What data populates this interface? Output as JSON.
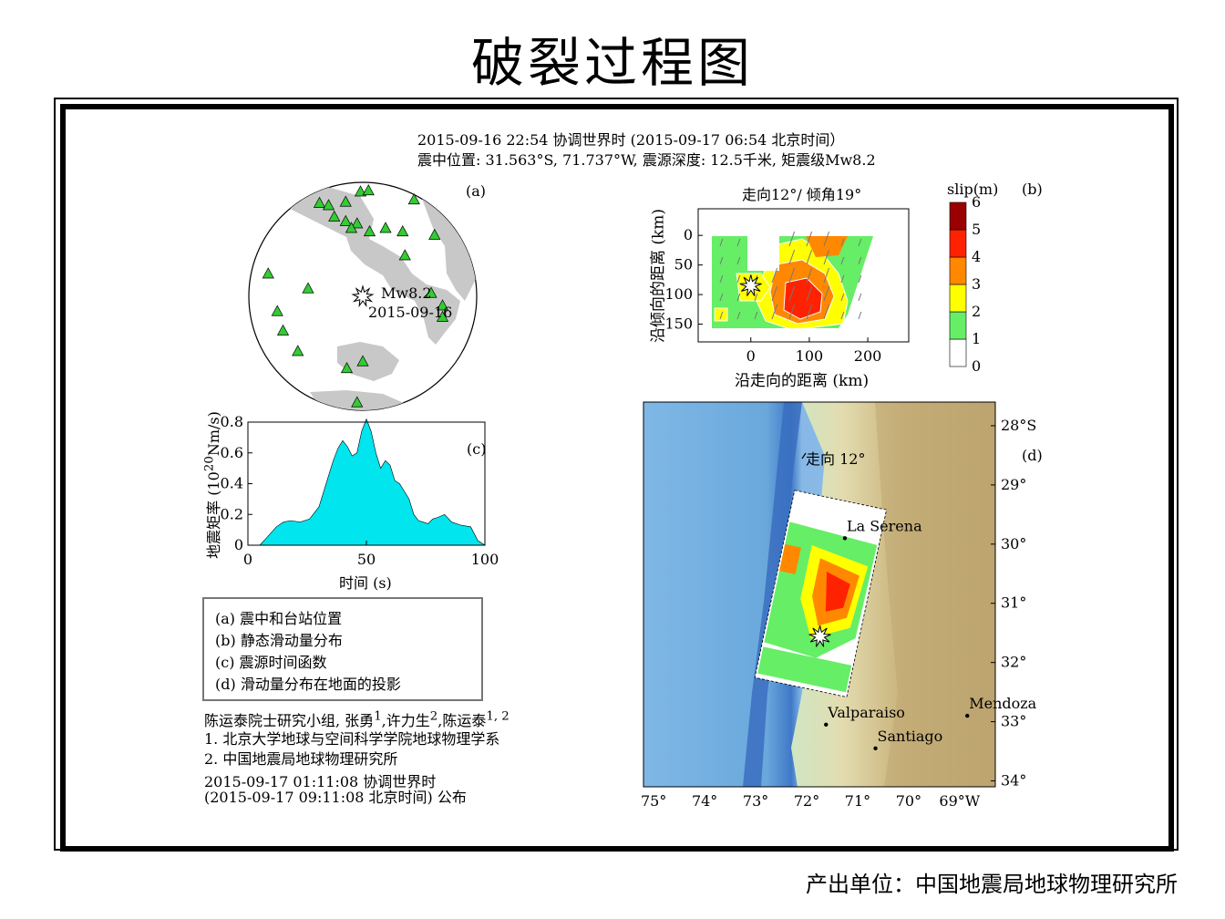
{
  "page": {
    "title": "破裂过程图",
    "producer": "产出单位：中国地震局地球物理研究所"
  },
  "header": {
    "line1": "2015-09-16 22:54 协调世界时  (2015-09-17 06:54 北京时间）",
    "line2": "震中位置: 31.563°S, 71.737°W,  震源深度: 12.5千米,  矩震级Mw8.2"
  },
  "panel_a": {
    "label": "(a)",
    "event_name": "Mw8.2",
    "event_date": "2015-09-16",
    "colors": {
      "station": "#33cc33",
      "land": "#c8c8c8"
    }
  },
  "panel_b": {
    "label": "(b)",
    "title": "走向12°/ 倾角19°",
    "colorbar_title": "slip(m)",
    "colorbar_ticks": [
      "0",
      "1",
      "2",
      "3",
      "4",
      "5",
      "6"
    ],
    "colorbar_colors": [
      "#ffffff",
      "#66ee66",
      "#ffff00",
      "#ff8800",
      "#ff2200",
      "#990000"
    ]
  },
  "panel_d": {
    "label": "(d)",
    "strike_label": "走向 12°",
    "cities": [
      {
        "name": "La Serena",
        "lon": -71.25,
        "lat": -29.9
      },
      {
        "name": "Valparaiso",
        "lon": -71.62,
        "lat": -33.05
      },
      {
        "name": "Santiago",
        "lon": -70.65,
        "lat": -33.45
      },
      {
        "name": "Mendoza",
        "lon": -68.85,
        "lat": -32.9
      }
    ],
    "lat_ticks": [
      "28°S",
      "29°",
      "30°",
      "31°",
      "32°",
      "33°",
      "34°"
    ],
    "lon_ticks": [
      "75°",
      "74°",
      "73°",
      "72°",
      "71°",
      "70°",
      "69°W"
    ]
  },
  "legend": {
    "items": [
      "(a) 震中和台站位置",
      "(b) 静态滑动量分布",
      "(c) 震源时间函数",
      "(d) 滑动量分布在地面的投影"
    ]
  },
  "credits": {
    "authors": "陈运泰院士研究小组,  张勇",
    "author1_sup": "1",
    "author2": ",许力生",
    "author2_sup": "2",
    "author3": ",陈运泰",
    "author3_sup": "1, 2",
    "aff1": "1. 北京大学地球与空间科学学院地球物理学系",
    "aff2": "2. 中国地震局地球物理研究所",
    "released1": "2015-09-17 01:11:08 协调世界时",
    "released2": "(2015-09-17 09:11:08 北京时间)  公布"
  },
  "chart_data": [
    {
      "type": "scatter",
      "panel": "a",
      "title": "",
      "note": "azimuthal projection centered on epicenter; station positions in projected units (-1..1)",
      "epicenter": [
        0,
        0
      ],
      "stations": [
        [
          -0.38,
          0.82
        ],
        [
          -0.3,
          0.8
        ],
        [
          -0.15,
          0.83
        ],
        [
          -0.02,
          0.92
        ],
        [
          0.05,
          0.93
        ],
        [
          0.45,
          0.85
        ],
        [
          -0.25,
          0.7
        ],
        [
          -0.15,
          0.66
        ],
        [
          -0.05,
          0.64
        ],
        [
          0.06,
          0.57
        ],
        [
          -0.1,
          0.6
        ],
        [
          0.2,
          0.6
        ],
        [
          0.35,
          0.57
        ],
        [
          0.63,
          0.54
        ],
        [
          0.37,
          0.36
        ],
        [
          -0.83,
          0.2
        ],
        [
          -0.48,
          0.07
        ],
        [
          0.6,
          0.03
        ],
        [
          -0.75,
          -0.13
        ],
        [
          0.7,
          -0.08
        ],
        [
          -0.7,
          -0.3
        ],
        [
          0.7,
          -0.18
        ],
        [
          -0.57,
          -0.48
        ],
        [
          -0.14,
          -0.63
        ],
        [
          0.0,
          -0.57
        ],
        [
          -0.05,
          -0.93
        ]
      ]
    },
    {
      "type": "area",
      "panel": "c",
      "title": "",
      "xlabel": "时间 (s)",
      "ylabel": "地震矩率 (10^20 Nm/s)",
      "xlim": [
        0,
        100
      ],
      "ylim": [
        0,
        0.8
      ],
      "x_ticks": [
        0,
        50,
        100
      ],
      "y_ticks": [
        0,
        0.2,
        0.4,
        0.6,
        0.8
      ],
      "x": [
        5,
        8,
        12,
        15,
        18,
        22,
        26,
        30,
        33,
        36,
        38,
        40,
        42,
        44,
        46,
        48,
        50,
        52,
        54,
        56,
        58,
        60,
        62,
        64,
        66,
        68,
        70,
        72,
        74,
        76,
        78,
        80,
        83,
        86,
        90,
        94,
        97,
        100
      ],
      "values": [
        0,
        0.05,
        0.12,
        0.15,
        0.16,
        0.15,
        0.17,
        0.25,
        0.4,
        0.55,
        0.63,
        0.68,
        0.64,
        0.58,
        0.6,
        0.74,
        0.82,
        0.74,
        0.6,
        0.5,
        0.55,
        0.52,
        0.42,
        0.4,
        0.35,
        0.3,
        0.2,
        0.16,
        0.15,
        0.14,
        0.17,
        0.18,
        0.2,
        0.15,
        0.13,
        0.12,
        0.03,
        0
      ],
      "fill": "#00e5ee"
    },
    {
      "type": "heatmap",
      "panel": "b",
      "title": "走向12°/ 倾角19°",
      "xlabel": "沿走向的距离 (km)",
      "ylabel": "沿倾向的距离 (km)",
      "xlim": [
        -90,
        270
      ],
      "ylim": [
        180,
        -45
      ],
      "x_ticks": [
        0,
        100,
        200
      ],
      "y_ticks": [
        0,
        50,
        100,
        150
      ],
      "hypocenter": [
        0,
        85
      ],
      "peak_slip_m": 5.5,
      "peak_location": [
        95,
        120
      ],
      "colorbar": {
        "label": "slip(m)",
        "range": [
          0,
          6
        ]
      }
    }
  ]
}
